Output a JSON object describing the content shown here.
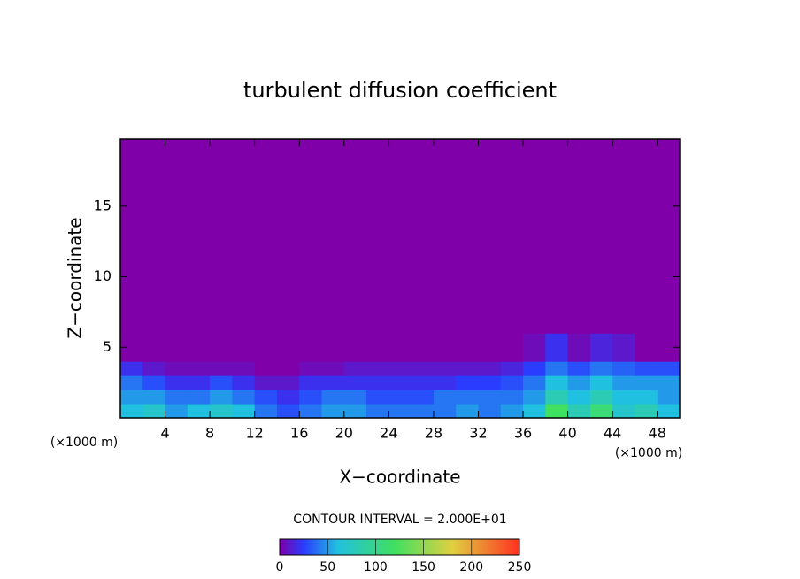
{
  "chart_data": {
    "type": "heatmap",
    "title": "turbulent diffusion coefficient",
    "x_label": "X−coordinate",
    "y_label": "Z−coordinate",
    "x_unit_labels": [
      "(×1000 m)",
      "(×1000 m)"
    ],
    "contour_label": "CONTOUR INTERVAL = 2.000E+01",
    "xlim": [
      0,
      50
    ],
    "ylim": [
      0,
      19.75
    ],
    "xticks": [
      4,
      8,
      12,
      16,
      20,
      24,
      28,
      32,
      36,
      40,
      44,
      48
    ],
    "yticks": [
      5,
      10,
      15
    ],
    "x_edges": [
      0,
      2,
      4,
      6,
      8,
      10,
      12,
      14,
      16,
      18,
      20,
      22,
      24,
      26,
      28,
      30,
      32,
      34,
      36,
      38,
      40,
      42,
      44,
      46,
      48,
      50
    ],
    "y_edges": [
      0,
      1,
      2,
      3,
      4,
      6,
      19.75
    ],
    "z": [
      [
        60,
        70,
        50,
        60,
        70,
        60,
        40,
        30,
        40,
        50,
        50,
        40,
        40,
        40,
        40,
        50,
        40,
        50,
        60,
        120,
        80,
        110,
        70,
        80,
        60
      ],
      [
        50,
        50,
        40,
        40,
        50,
        40,
        30,
        20,
        30,
        40,
        40,
        30,
        30,
        30,
        40,
        40,
        40,
        40,
        50,
        80,
        60,
        80,
        60,
        60,
        50
      ],
      [
        40,
        30,
        20,
        20,
        30,
        20,
        10,
        10,
        20,
        20,
        20,
        20,
        20,
        20,
        20,
        25,
        25,
        30,
        40,
        60,
        50,
        60,
        50,
        50,
        50
      ],
      [
        20,
        10,
        5,
        5,
        5,
        5,
        0,
        0,
        5,
        5,
        10,
        10,
        10,
        10,
        10,
        10,
        10,
        15,
        25,
        40,
        30,
        40,
        35,
        30,
        30
      ],
      [
        0,
        0,
        0,
        0,
        0,
        0,
        0,
        0,
        0,
        0,
        0,
        0,
        0,
        0,
        0,
        0,
        0,
        0,
        5,
        20,
        5,
        15,
        10,
        0,
        0
      ],
      [
        0,
        0,
        0,
        0,
        0,
        0,
        0,
        0,
        0,
        0,
        0,
        0,
        0,
        0,
        0,
        0,
        0,
        0,
        0,
        0,
        0,
        0,
        0,
        0,
        0
      ]
    ],
    "colormap": [
      [
        0,
        "#7f00a8"
      ],
      [
        25,
        "#2a3cff"
      ],
      [
        60,
        "#20c0e0"
      ],
      [
        120,
        "#40e060"
      ],
      [
        180,
        "#e0d040"
      ],
      [
        250,
        "#ff3020"
      ]
    ],
    "colorbar_lim": [
      0,
      250
    ],
    "colorbar_ticks": [
      0,
      50,
      100,
      150,
      200,
      250
    ]
  }
}
